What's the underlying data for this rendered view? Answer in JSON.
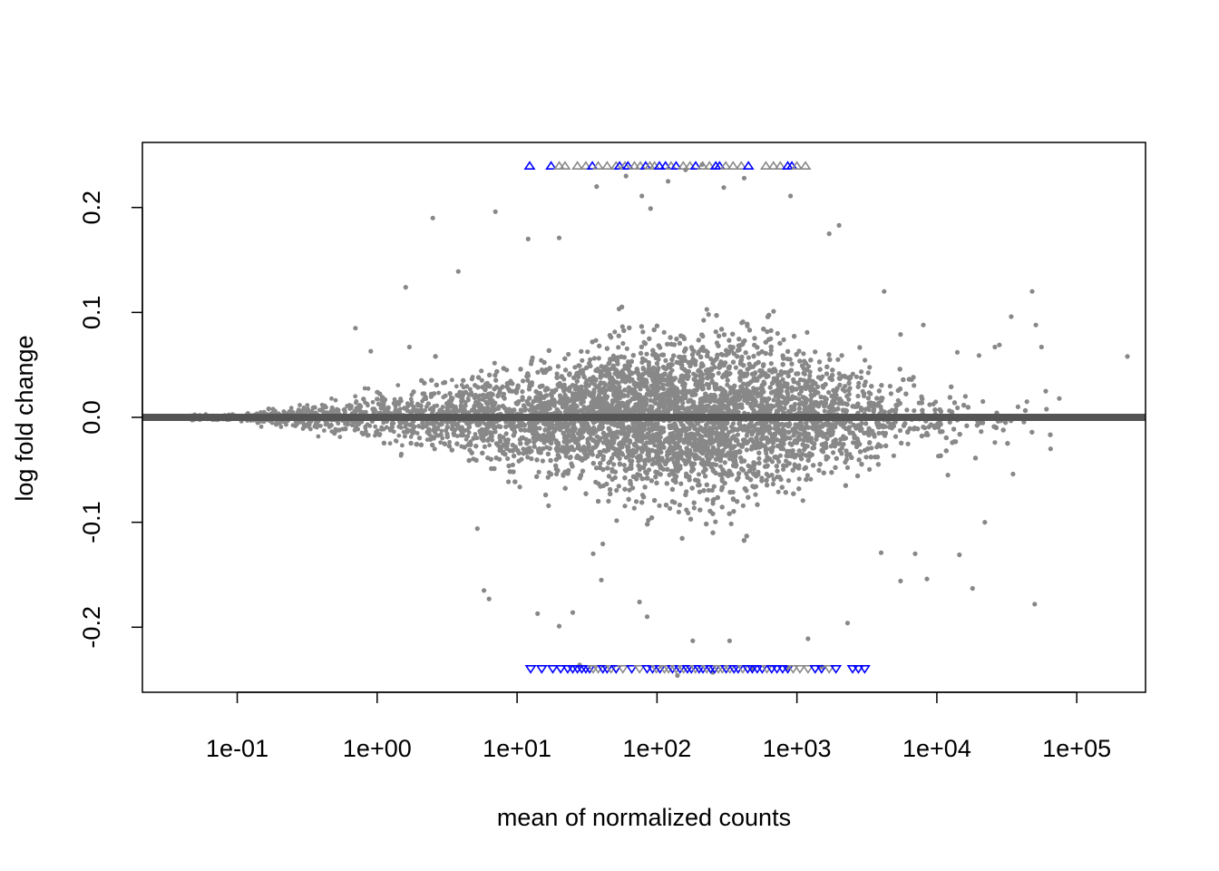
{
  "chart_data": {
    "type": "scatter",
    "title": "",
    "xlabel": "mean of normalized counts",
    "ylabel": "log fold change",
    "x_scale": "log10",
    "xlim": [
      0.021,
      310000
    ],
    "ylim": [
      -0.262,
      0.262
    ],
    "x_ticks": [
      0.1,
      1,
      10,
      100,
      1000,
      10000,
      100000
    ],
    "x_tick_labels": [
      "1e-01",
      "1e+00",
      "1e+01",
      "1e+02",
      "1e+03",
      "1e+04",
      "1e+05"
    ],
    "y_ticks": [
      -0.2,
      -0.1,
      0.0,
      0.1,
      0.2
    ],
    "y_tick_labels": [
      "-0.2",
      "-0.1",
      "0.0",
      "0.1",
      "0.2"
    ],
    "grid": false,
    "legend": "none",
    "reference_line": {
      "y": 0,
      "color": "#555555"
    },
    "colors": {
      "not_significant": "#888888",
      "significant": "#0000ff",
      "reference_line": "#555555",
      "frame": "#000000"
    },
    "marker_legend": {
      "dot": "gene within limits",
      "triangle_up": "log fold change above upper limit",
      "triangle_down": "log fold change below lower limit"
    },
    "series": [
      {
        "kind": "outlier_points",
        "points": [
          [
            2.5,
            0.19
          ],
          [
            7.0,
            0.196
          ],
          [
            0.7,
            0.085
          ],
          [
            3.8,
            0.139
          ],
          [
            1.6,
            0.124
          ],
          [
            0.9,
            0.063
          ],
          [
            1.7,
            0.067
          ],
          [
            5.2,
            -0.106
          ],
          [
            5.8,
            -0.165
          ],
          [
            6.3,
            -0.173
          ],
          [
            14,
            -0.187
          ],
          [
            20,
            -0.199
          ],
          [
            25,
            -0.186
          ],
          [
            12,
            0.17
          ],
          [
            20,
            0.171
          ],
          [
            37,
            0.22
          ],
          [
            60,
            0.23
          ],
          [
            78,
            0.211
          ],
          [
            90,
            0.199
          ],
          [
            120,
            0.225
          ],
          [
            160,
            0.236
          ],
          [
            210,
            0.241
          ],
          [
            300,
            0.219
          ],
          [
            420,
            0.228
          ],
          [
            900,
            0.211
          ],
          [
            2000,
            0.183
          ],
          [
            1700,
            0.175
          ],
          [
            4200,
            0.12
          ],
          [
            5500,
            0.079
          ],
          [
            8000,
            0.088
          ],
          [
            14000,
            0.062
          ],
          [
            20000,
            0.059
          ],
          [
            26000,
            0.067
          ],
          [
            34000,
            0.096
          ],
          [
            48000,
            0.12
          ],
          [
            51000,
            0.088
          ],
          [
            56000,
            0.067
          ],
          [
            28000,
            0.069
          ],
          [
            230000,
            0.058
          ],
          [
            75000,
            0.018
          ],
          [
            60000,
            0.025
          ],
          [
            44000,
            0.015
          ],
          [
            12000,
            -0.055
          ],
          [
            22000,
            -0.1
          ],
          [
            35000,
            -0.054
          ],
          [
            50000,
            -0.178
          ],
          [
            18000,
            -0.163
          ],
          [
            14500,
            -0.131
          ],
          [
            8500,
            -0.154
          ],
          [
            7000,
            -0.13
          ],
          [
            5500,
            -0.156
          ],
          [
            4000,
            -0.129
          ],
          [
            65000,
            -0.03
          ],
          [
            38000,
            0.01
          ],
          [
            16000,
            0.02
          ],
          [
            28,
            -0.236
          ],
          [
            140,
            -0.246
          ],
          [
            250,
            -0.243
          ],
          [
            480,
            -0.24
          ],
          [
            850,
            -0.239
          ],
          [
            1200,
            -0.211
          ],
          [
            1500,
            -0.238
          ],
          [
            2300,
            -0.196
          ],
          [
            40,
            -0.155
          ],
          [
            35,
            -0.13
          ],
          [
            85,
            -0.19
          ],
          [
            75,
            -0.176
          ],
          [
            180,
            -0.213
          ],
          [
            330,
            -0.213
          ]
        ]
      },
      {
        "kind": "capped_up",
        "points": [
          [
            12.3,
            0.24,
            "blue"
          ],
          [
            17.5,
            0.24,
            "blue"
          ],
          [
            20,
            0.24,
            "gray"
          ],
          [
            22,
            0.24,
            "gray"
          ],
          [
            27,
            0.24,
            "gray"
          ],
          [
            31,
            0.24,
            "gray"
          ],
          [
            34.5,
            0.24,
            "blue"
          ],
          [
            38,
            0.24,
            "gray"
          ],
          [
            44,
            0.24,
            "gray"
          ],
          [
            51,
            0.24,
            "gray"
          ],
          [
            54,
            0.24,
            "blue"
          ],
          [
            59,
            0.24,
            "gray"
          ],
          [
            62,
            0.24,
            "blue"
          ],
          [
            69,
            0.24,
            "gray"
          ],
          [
            76,
            0.24,
            "gray"
          ],
          [
            83,
            0.24,
            "blue"
          ],
          [
            89,
            0.24,
            "gray"
          ],
          [
            96,
            0.24,
            "gray"
          ],
          [
            104,
            0.24,
            "blue"
          ],
          [
            115,
            0.24,
            "blue"
          ],
          [
            126,
            0.24,
            "gray"
          ],
          [
            137,
            0.24,
            "blue"
          ],
          [
            154,
            0.24,
            "gray"
          ],
          [
            172,
            0.24,
            "gray"
          ],
          [
            189,
            0.24,
            "blue"
          ],
          [
            212,
            0.24,
            "gray"
          ],
          [
            237,
            0.24,
            "gray"
          ],
          [
            263,
            0.24,
            "blue"
          ],
          [
            280,
            0.24,
            "blue"
          ],
          [
            310,
            0.24,
            "gray"
          ],
          [
            350,
            0.24,
            "gray"
          ],
          [
            400,
            0.24,
            "gray"
          ],
          [
            450,
            0.24,
            "blue"
          ],
          [
            600,
            0.24,
            "gray"
          ],
          [
            680,
            0.24,
            "gray"
          ],
          [
            760,
            0.24,
            "gray"
          ],
          [
            860,
            0.24,
            "blue"
          ],
          [
            920,
            0.24,
            "blue"
          ],
          [
            1000,
            0.24,
            "gray"
          ],
          [
            1150,
            0.24,
            "gray"
          ]
        ]
      },
      {
        "kind": "capped_down",
        "points": [
          [
            51,
            -0.24,
            "gray"
          ],
          [
            12.5,
            -0.24,
            "blue"
          ],
          [
            15,
            -0.24,
            "blue"
          ],
          [
            18,
            -0.24,
            "blue"
          ],
          [
            20.5,
            -0.24,
            "blue"
          ],
          [
            23,
            -0.24,
            "blue"
          ],
          [
            25,
            -0.24,
            "blue"
          ],
          [
            27,
            -0.24,
            "blue"
          ],
          [
            29,
            -0.24,
            "blue"
          ],
          [
            31,
            -0.24,
            "blue"
          ],
          [
            33,
            -0.24,
            "blue"
          ],
          [
            35,
            -0.24,
            "gray"
          ],
          [
            38,
            -0.24,
            "gray"
          ],
          [
            41,
            -0.24,
            "blue"
          ],
          [
            44,
            -0.24,
            "blue"
          ],
          [
            47,
            -0.24,
            "gray"
          ],
          [
            51,
            -0.24,
            "blue"
          ],
          [
            57,
            -0.24,
            "gray"
          ],
          [
            66,
            -0.24,
            "blue"
          ],
          [
            75,
            -0.24,
            "gray"
          ],
          [
            85,
            -0.24,
            "blue"
          ],
          [
            93,
            -0.24,
            "blue"
          ],
          [
            99,
            -0.24,
            "gray"
          ],
          [
            105,
            -0.24,
            "blue"
          ],
          [
            113,
            -0.24,
            "gray"
          ],
          [
            121,
            -0.24,
            "gray"
          ],
          [
            129,
            -0.24,
            "blue"
          ],
          [
            137,
            -0.24,
            "gray"
          ],
          [
            146,
            -0.24,
            "blue"
          ],
          [
            155,
            -0.24,
            "gray"
          ],
          [
            165,
            -0.24,
            "blue"
          ],
          [
            176,
            -0.24,
            "blue"
          ],
          [
            188,
            -0.24,
            "gray"
          ],
          [
            200,
            -0.24,
            "blue"
          ],
          [
            213,
            -0.24,
            "blue"
          ],
          [
            227,
            -0.24,
            "gray"
          ],
          [
            242,
            -0.24,
            "blue"
          ],
          [
            258,
            -0.24,
            "blue"
          ],
          [
            275,
            -0.24,
            "gray"
          ],
          [
            293,
            -0.24,
            "gray"
          ],
          [
            312,
            -0.24,
            "blue"
          ],
          [
            332,
            -0.24,
            "gray"
          ],
          [
            355,
            -0.24,
            "blue"
          ],
          [
            380,
            -0.24,
            "blue"
          ],
          [
            410,
            -0.24,
            "gray"
          ],
          [
            445,
            -0.24,
            "blue"
          ],
          [
            480,
            -0.24,
            "blue"
          ],
          [
            520,
            -0.24,
            "blue"
          ],
          [
            565,
            -0.24,
            "blue"
          ],
          [
            610,
            -0.24,
            "gray"
          ],
          [
            660,
            -0.24,
            "blue"
          ],
          [
            720,
            -0.24,
            "blue"
          ],
          [
            790,
            -0.24,
            "blue"
          ],
          [
            860,
            -0.24,
            "blue"
          ],
          [
            940,
            -0.24,
            "gray"
          ],
          [
            1050,
            -0.24,
            "gray"
          ],
          [
            1200,
            -0.24,
            "gray"
          ],
          [
            1350,
            -0.24,
            "blue"
          ],
          [
            1500,
            -0.24,
            "blue"
          ],
          [
            1700,
            -0.24,
            "gray"
          ],
          [
            1900,
            -0.24,
            "blue"
          ],
          [
            2500,
            -0.24,
            "blue"
          ],
          [
            2750,
            -0.24,
            "blue"
          ],
          [
            3050,
            -0.24,
            "blue"
          ]
        ]
      }
    ]
  }
}
